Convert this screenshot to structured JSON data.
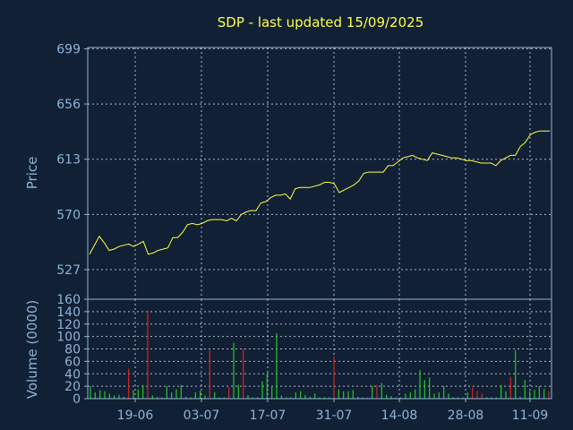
{
  "chart_data": [
    {
      "type": "line",
      "title": "SDP - last updated 15/09/2025",
      "ylabel": "Price",
      "ylim": [
        504,
        700
      ],
      "yticks": [
        699,
        656,
        613,
        570,
        527
      ],
      "series_color": "#ffff44",
      "grid": true,
      "values": [
        539,
        546,
        553,
        548,
        542,
        543,
        545,
        546,
        547,
        545,
        547,
        549,
        539,
        540,
        542,
        543,
        544,
        552,
        552,
        556,
        562,
        563,
        562,
        563,
        565,
        566,
        566,
        566,
        565,
        567,
        565,
        570,
        572,
        573,
        573,
        579,
        580,
        583,
        585,
        585,
        586,
        582,
        590,
        591,
        591,
        591,
        592,
        593,
        595,
        595,
        594,
        587,
        589,
        591,
        593,
        596,
        602,
        603,
        603,
        603,
        603,
        608,
        608,
        611,
        614,
        615,
        616,
        614,
        613,
        612,
        618,
        617,
        616,
        615,
        614,
        614,
        613,
        612,
        612,
        611,
        610,
        610,
        610,
        608,
        612,
        614,
        616,
        616,
        623,
        626,
        632,
        634,
        635,
        635,
        635
      ]
    },
    {
      "type": "bar",
      "ylabel": "Volume (0000)",
      "ylim": [
        0,
        160
      ],
      "yticks": [
        160,
        140,
        120,
        100,
        80,
        60,
        40,
        20,
        0
      ],
      "xlabels": [
        "19-06",
        "03-07",
        "17-07",
        "31-07",
        "14-08",
        "28-08",
        "11-09"
      ],
      "up_color": "#22cc22",
      "down_color": "#dd2222",
      "grid": true,
      "values": [
        20,
        10,
        14,
        12,
        8,
        5,
        6,
        3,
        48,
        14,
        15,
        22,
        142,
        5,
        3,
        2,
        20,
        10,
        15,
        22,
        3,
        2,
        10,
        13,
        5,
        78,
        10,
        2,
        2,
        18,
        90,
        22,
        80,
        6,
        2,
        2,
        28,
        40,
        20,
        105,
        5,
        2,
        2,
        10,
        12,
        6,
        3,
        8,
        2,
        2,
        2,
        68,
        15,
        12,
        12,
        14,
        3,
        2,
        2,
        20,
        22,
        25,
        6,
        4,
        2,
        2,
        8,
        10,
        15,
        46,
        30,
        34,
        8,
        10,
        20,
        8,
        2,
        2,
        2,
        10,
        18,
        12,
        8,
        2,
        2,
        2,
        22,
        12,
        35,
        78,
        3,
        30,
        12,
        14,
        20,
        16,
        12
      ],
      "directions": [
        "u",
        "u",
        "u",
        "u",
        "u",
        "u",
        "u",
        "u",
        "d",
        "u",
        "u",
        "u",
        "d",
        "u",
        "u",
        "u",
        "u",
        "u",
        "u",
        "u",
        "u",
        "u",
        "u",
        "u",
        "u",
        "d",
        "u",
        "u",
        "u",
        "d",
        "u",
        "u",
        "d",
        "u",
        "u",
        "u",
        "u",
        "u",
        "u",
        "u",
        "u",
        "u",
        "u",
        "u",
        "u",
        "u",
        "u",
        "u",
        "u",
        "u",
        "u",
        "d",
        "u",
        "u",
        "u",
        "u",
        "u",
        "u",
        "d",
        "u",
        "d",
        "u",
        "u",
        "u",
        "u",
        "u",
        "u",
        "u",
        "u",
        "u",
        "u",
        "u",
        "u",
        "u",
        "u",
        "u",
        "u",
        "u",
        "u",
        "u",
        "d",
        "d",
        "d",
        "u",
        "u",
        "u",
        "u",
        "u",
        "d",
        "u",
        "u",
        "u",
        "u",
        "u",
        "u",
        "u",
        "d"
      ]
    }
  ]
}
